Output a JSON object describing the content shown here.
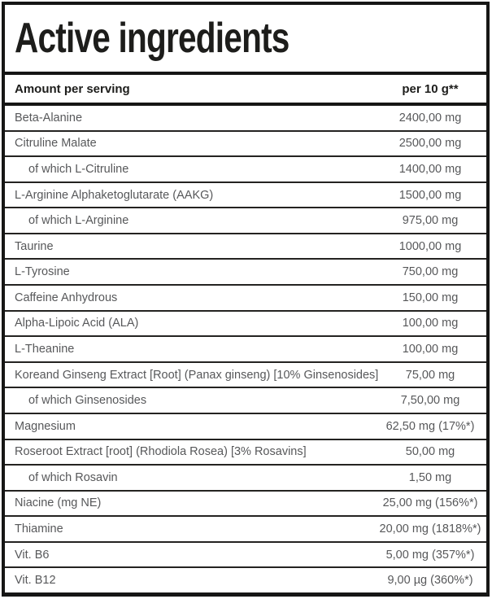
{
  "title": "Active ingredients",
  "table": {
    "header": {
      "amount_label": "Amount per serving",
      "per_label": "per 10 g**"
    },
    "rows": [
      {
        "name": "Beta-Alanine",
        "value": "2400,00 mg",
        "indent": false
      },
      {
        "name": "Citruline Malate",
        "value": "2500,00 mg",
        "indent": false
      },
      {
        "name": "of which L-Citruline",
        "value": "1400,00 mg",
        "indent": true
      },
      {
        "name": "L-Arginine Alphaketoglutarate (AAKG)",
        "value": "1500,00 mg",
        "indent": false
      },
      {
        "name": "of which L-Arginine",
        "value": "975,00 mg",
        "indent": true
      },
      {
        "name": "Taurine",
        "value": "1000,00 mg",
        "indent": false
      },
      {
        "name": "L-Tyrosine",
        "value": "750,00 mg",
        "indent": false
      },
      {
        "name": "Caffeine Anhydrous",
        "value": "150,00 mg",
        "indent": false
      },
      {
        "name": "Alpha-Lipoic Acid (ALA)",
        "value": "100,00 mg",
        "indent": false
      },
      {
        "name": "L-Theanine",
        "value": "100,00 mg",
        "indent": false
      },
      {
        "name": "Koreand Ginseng Extract [Root] (Panax ginseng) [10% Ginsenosides]",
        "value": "75,00 mg",
        "indent": false
      },
      {
        "name": "of which Ginsenosides",
        "value": "7,50,00 mg",
        "indent": true
      },
      {
        "name": "Magnesium",
        "value": "62,50 mg (17%*)",
        "indent": false
      },
      {
        "name": "Roseroot Extract [root] (Rhodiola Rosea) [3% Rosavins]",
        "value": "50,00 mg",
        "indent": false
      },
      {
        "name": "of which Rosavin",
        "value": "1,50 mg",
        "indent": true
      },
      {
        "name": "Niacine (mg NE)",
        "value": "25,00 mg (156%*)",
        "indent": false
      },
      {
        "name": "Thiamine",
        "value": "20,00 mg (1818%*)",
        "indent": false
      },
      {
        "name": "Vit. B6",
        "value": "5,00 mg (357%*)",
        "indent": false
      },
      {
        "name": "Vit. B12",
        "value": "9,00 µg (360%*)",
        "indent": false
      }
    ]
  },
  "colors": {
    "border": "#161615",
    "row_separator": "#242321",
    "heading_text": "#1d1d1b",
    "row_text": "#57585a",
    "background": "#ffffff"
  }
}
